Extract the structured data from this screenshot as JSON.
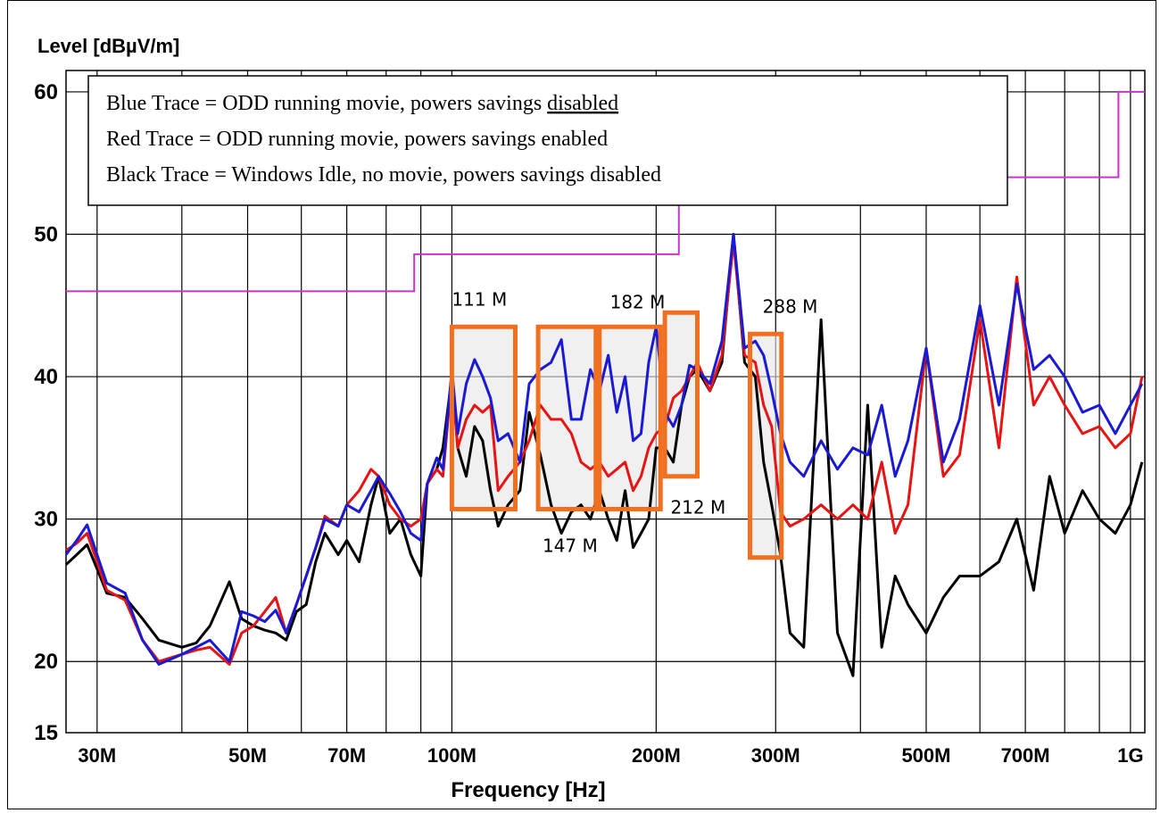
{
  "chart_data": {
    "type": "line",
    "xscale": "log",
    "xlim": [
      27,
      1050
    ],
    "ylim": [
      15,
      62
    ],
    "ylabel": "Level [dBµV/m]",
    "xlabel": "Frequency [Hz]",
    "yticks": [
      {
        "v": 60,
        "label": "60"
      },
      {
        "v": 50,
        "label": "50"
      },
      {
        "v": 40,
        "label": "40"
      },
      {
        "v": 30,
        "label": "30"
      },
      {
        "v": 20,
        "label": "20"
      },
      {
        "v": 15,
        "label": "15"
      }
    ],
    "xtick_labels": [
      {
        "v": 30,
        "label": "30M"
      },
      {
        "v": 50,
        "label": "50M"
      },
      {
        "v": 70,
        "label": "70M"
      },
      {
        "v": 100,
        "label": "100M"
      },
      {
        "v": 200,
        "label": "200M"
      },
      {
        "v": 300,
        "label": "300M"
      },
      {
        "v": 500,
        "label": "500M"
      },
      {
        "v": 700,
        "label": "700M"
      },
      {
        "v": 1000,
        "label": "1G"
      }
    ],
    "grid": true,
    "legend": {
      "placement": "top-left",
      "lines": [
        {
          "text": "Blue Trace = ODD running movie, powers savings ",
          "emph": "disabled"
        },
        {
          "text": "Red Trace = ODD running movie, powers savings enabled",
          "emph": ""
        },
        {
          "text": "Black Trace = Windows Idle, no movie, powers savings disabled",
          "emph": ""
        }
      ]
    },
    "colors": {
      "blue": "#1a1ad4",
      "red": "#e81414",
      "black": "#000000",
      "limit": "#cc33cc",
      "box": "#f07020"
    },
    "limit_line": {
      "x": [
        27,
        88,
        88,
        216,
        216,
        960,
        960,
        1050
      ],
      "y": [
        46,
        46,
        48.6,
        48.6,
        54,
        54,
        60,
        60
      ]
    },
    "series": [
      {
        "color": "#1a1ad4",
        "x": [
          27,
          28,
          29,
          30,
          31,
          33,
          35,
          37,
          40,
          42,
          44,
          47,
          49,
          51,
          53,
          55,
          57,
          59,
          61,
          63,
          65,
          68,
          70,
          73,
          76,
          78,
          81,
          84,
          87,
          90,
          92,
          95,
          97,
          100,
          102,
          105,
          108,
          111,
          114,
          117,
          121,
          126,
          130,
          135,
          140,
          145,
          150,
          155,
          160,
          165,
          170,
          175,
          180,
          185,
          190,
          195,
          200,
          206,
          212,
          218,
          224,
          230,
          240,
          250,
          260,
          270,
          280,
          288,
          296,
          305,
          315,
          330,
          350,
          370,
          390,
          410,
          430,
          450,
          470,
          500,
          530,
          560,
          600,
          640,
          680,
          720,
          760,
          800,
          850,
          900,
          950,
          1000,
          1040
        ],
        "y": [
          27.5,
          28.5,
          29.6,
          27.5,
          25.5,
          24.8,
          21.5,
          19.8,
          20.5,
          21,
          21.5,
          20,
          23.5,
          23.2,
          22.8,
          23.6,
          22,
          24,
          26,
          28,
          30,
          29.5,
          31,
          30.5,
          32,
          33,
          31.8,
          30.5,
          29,
          28.5,
          32.5,
          34.3,
          33.5,
          40.5,
          36,
          39.5,
          41.2,
          40,
          38.5,
          35.5,
          36,
          34,
          39.5,
          40.5,
          41,
          42.6,
          37,
          37,
          40.5,
          39,
          41.5,
          37.5,
          40,
          35.5,
          36,
          41,
          43.5,
          37.5,
          36.5,
          38,
          40.8,
          40.5,
          39.5,
          42.5,
          50,
          42,
          42.5,
          41.5,
          39,
          36,
          34,
          33,
          35.5,
          33.5,
          35,
          34.5,
          38,
          33,
          35.5,
          42,
          34,
          37,
          45,
          38,
          46.5,
          40.5,
          41.5,
          40,
          37.5,
          38,
          36,
          38,
          39.5
        ]
      },
      {
        "color": "#e81414",
        "x": [
          27,
          28,
          29,
          30,
          31,
          33,
          35,
          37,
          40,
          42,
          44,
          47,
          49,
          51,
          53,
          55,
          57,
          59,
          61,
          63,
          65,
          68,
          70,
          73,
          76,
          78,
          81,
          84,
          87,
          90,
          92,
          95,
          97,
          100,
          102,
          105,
          108,
          111,
          114,
          117,
          121,
          126,
          130,
          135,
          140,
          145,
          150,
          155,
          160,
          165,
          170,
          175,
          180,
          185,
          190,
          195,
          200,
          206,
          212,
          218,
          224,
          230,
          240,
          250,
          260,
          270,
          280,
          288,
          296,
          305,
          315,
          330,
          350,
          370,
          390,
          410,
          430,
          450,
          470,
          500,
          530,
          560,
          600,
          640,
          680,
          720,
          760,
          800,
          850,
          900,
          950,
          1000,
          1040
        ],
        "y": [
          27.8,
          28.3,
          29,
          27,
          25,
          24.3,
          21.5,
          20,
          20.5,
          20.8,
          21,
          19.8,
          22,
          22.5,
          23.5,
          24.5,
          22,
          24,
          26,
          28,
          30.2,
          29.5,
          31,
          32,
          33.5,
          33,
          31,
          30,
          29.5,
          30,
          32.5,
          33.5,
          33,
          40,
          35,
          37,
          38,
          37.5,
          38,
          32,
          33,
          34,
          35.5,
          38,
          37,
          37,
          36,
          34,
          33.5,
          34,
          33,
          33.5,
          34,
          32,
          33,
          35,
          36,
          36.5,
          38.5,
          39,
          40,
          41,
          39,
          41.5,
          49.5,
          41.5,
          41,
          38,
          36.5,
          30.5,
          29.5,
          30,
          31,
          30,
          31,
          30,
          34,
          29,
          31,
          42,
          33,
          34.5,
          44,
          35,
          47,
          38,
          40,
          38,
          36,
          36.5,
          35,
          36,
          40
        ]
      },
      {
        "color": "#000000",
        "x": [
          27,
          28,
          29,
          30,
          31,
          33,
          35,
          37,
          40,
          42,
          44,
          47,
          49,
          51,
          53,
          55,
          57,
          59,
          61,
          63,
          65,
          68,
          70,
          73,
          76,
          78,
          81,
          84,
          87,
          90,
          92,
          95,
          97,
          100,
          102,
          105,
          108,
          111,
          114,
          117,
          121,
          126,
          130,
          135,
          140,
          145,
          150,
          155,
          160,
          165,
          170,
          175,
          180,
          185,
          190,
          195,
          200,
          206,
          212,
          218,
          224,
          230,
          240,
          250,
          260,
          270,
          280,
          288,
          296,
          305,
          315,
          330,
          350,
          370,
          390,
          410,
          430,
          450,
          470,
          500,
          530,
          560,
          600,
          640,
          680,
          720,
          760,
          800,
          850,
          900,
          950,
          1000,
          1040
        ],
        "y": [
          26.8,
          27.5,
          28.2,
          26.5,
          24.8,
          24.5,
          23,
          21.5,
          21,
          21.3,
          22.5,
          25.6,
          23,
          22.5,
          22.2,
          22,
          21.5,
          23.5,
          24,
          27,
          29,
          27.5,
          28.5,
          27,
          31,
          33,
          29,
          30,
          27.5,
          26,
          32.5,
          33.5,
          35,
          40,
          35,
          33,
          36.5,
          35.5,
          32,
          29.5,
          31,
          32,
          37.5,
          34.5,
          31,
          29,
          30.5,
          31,
          30,
          32,
          30,
          28.5,
          32,
          28,
          29,
          30,
          35,
          35,
          34,
          38,
          40,
          40.5,
          39,
          41,
          50,
          41,
          40,
          34,
          31,
          27.5,
          22,
          21,
          44,
          22,
          19,
          38,
          21,
          26,
          24,
          22,
          24.5,
          26,
          26,
          27,
          30,
          25,
          33,
          29,
          32,
          30,
          29,
          31,
          34
        ]
      }
    ],
    "annotations": [
      {
        "x": 100,
        "y": 45,
        "text": "111 M"
      },
      {
        "x": 171,
        "y": 44.8,
        "text": "182 M"
      },
      {
        "x": 287,
        "y": 44.5,
        "text": "288 M"
      },
      {
        "x": 136,
        "y": 27.7,
        "text": "147 M"
      },
      {
        "x": 210,
        "y": 30.4,
        "text": "212 M"
      }
    ],
    "boxes": [
      {
        "x1": 100,
        "x2": 124,
        "y1": 30.7,
        "y2": 43.5
      },
      {
        "x1": 134,
        "x2": 163,
        "y1": 30.7,
        "y2": 43.5
      },
      {
        "x1": 165,
        "x2": 203,
        "y1": 30.7,
        "y2": 43.5
      },
      {
        "x1": 206,
        "x2": 230,
        "y1": 33,
        "y2": 44.5
      },
      {
        "x1": 275,
        "x2": 306,
        "y1": 27.3,
        "y2": 43
      }
    ]
  }
}
